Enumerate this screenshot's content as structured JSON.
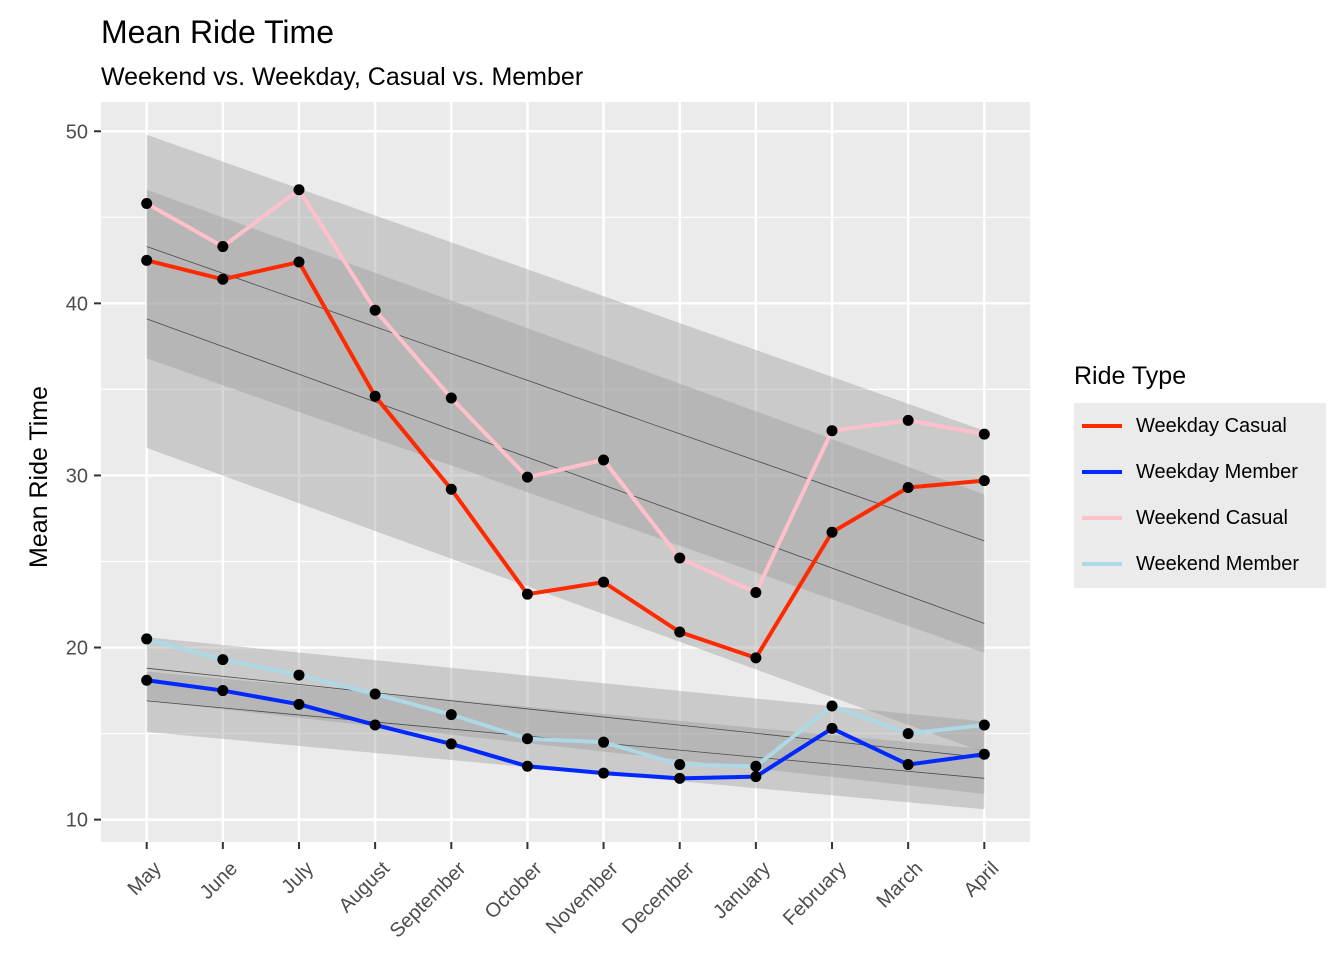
{
  "chart_data": {
    "type": "line",
    "title": "Mean Ride Time",
    "subtitle": "Weekend vs. Weekday, Casual vs. Member",
    "xlabel": "",
    "ylabel": "Mean Ride Time",
    "categories": [
      "May",
      "June",
      "July",
      "August",
      "September",
      "October",
      "November",
      "December",
      "January",
      "February",
      "March",
      "April"
    ],
    "yticks": [
      10,
      20,
      30,
      40,
      50
    ],
    "ylim": [
      8.7,
      51.7
    ],
    "grid": true,
    "legend": {
      "title": "Ride Type",
      "placement": "right"
    },
    "series": [
      {
        "name": "Weekday Casual",
        "color": "#ff2a00",
        "values": [
          42.5,
          41.4,
          42.4,
          34.6,
          29.2,
          23.1,
          23.8,
          20.9,
          19.4,
          26.7,
          29.3,
          29.7
        ]
      },
      {
        "name": "Weekday Member",
        "color": "#0028ff",
        "values": [
          18.1,
          17.5,
          16.7,
          15.5,
          14.4,
          13.1,
          12.7,
          12.4,
          12.5,
          15.3,
          13.2,
          13.8
        ]
      },
      {
        "name": "Weekend Casual",
        "color": "#ffc0cb",
        "values": [
          45.8,
          43.3,
          46.6,
          39.6,
          34.5,
          29.9,
          30.9,
          25.2,
          23.2,
          32.6,
          33.2,
          32.4
        ]
      },
      {
        "name": "Weekend Member",
        "color": "#add8e6",
        "values": [
          20.5,
          19.3,
          18.4,
          17.3,
          16.1,
          14.7,
          14.5,
          13.2,
          13.1,
          16.6,
          15.0,
          15.5
        ]
      }
    ],
    "trend_bands": [
      {
        "start": [
          39.1,
          31.6,
          46.6
        ],
        "end": [
          21.4,
          13.9,
          28.9
        ]
      },
      {
        "start": [
          43.3,
          36.8,
          49.8
        ],
        "end": [
          26.2,
          19.7,
          32.6
        ]
      },
      {
        "start": [
          16.9,
          15.1,
          18.6
        ],
        "end": [
          12.4,
          10.6,
          14.1
        ]
      },
      {
        "start": [
          18.8,
          16.9,
          20.6
        ],
        "end": [
          13.6,
          11.5,
          15.7
        ]
      }
    ]
  }
}
